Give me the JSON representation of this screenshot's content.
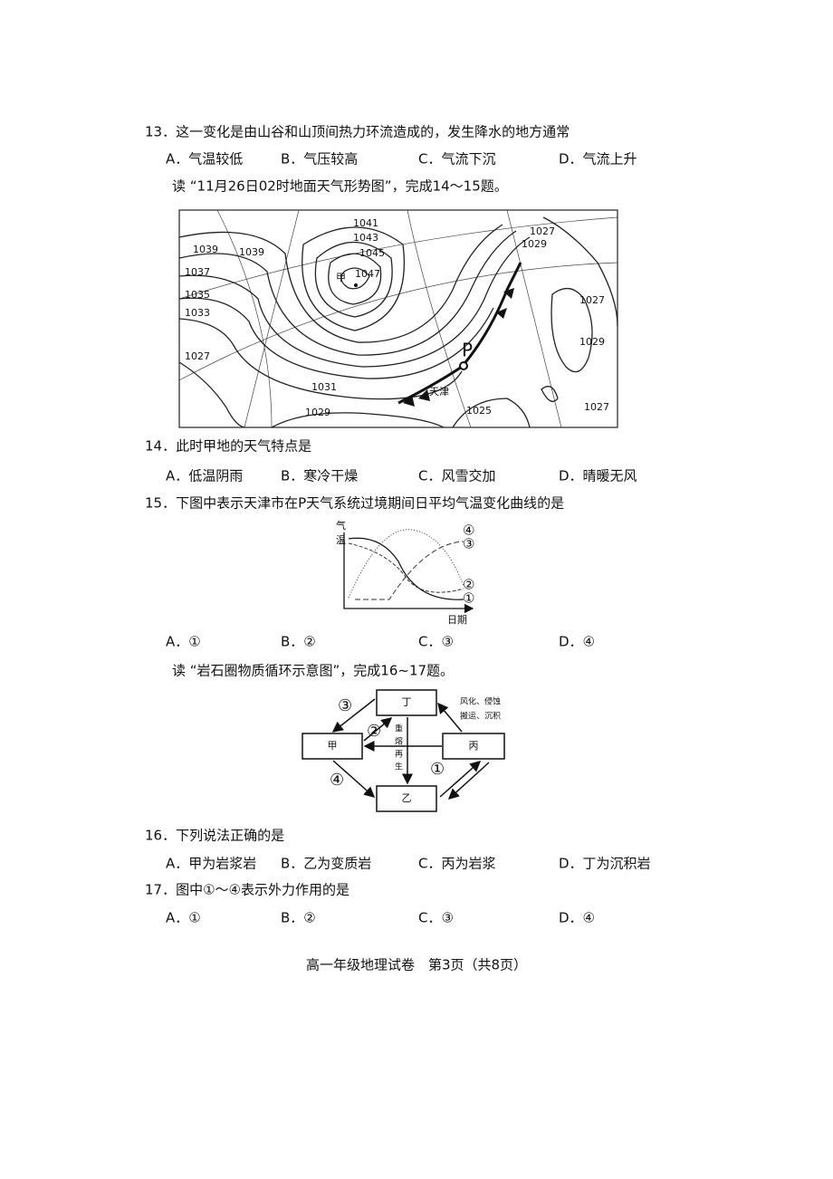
{
  "q13": {
    "stem": "13．这一变化是由山谷和山顶间热力环流造成的，发生降水的地方通常",
    "options": [
      "A．气温较低",
      "B．气压较高",
      "C．气流下沉",
      "D．气流上升"
    ]
  },
  "intro_14_15": "读 “11月26日02时地面天气形势图”，完成14～15题。",
  "map": {
    "isobars": [
      "1041",
      "1043",
      "1045",
      "1047",
      "1039",
      "1039",
      "1037",
      "1035",
      "1033",
      "1027",
      "1031",
      "1029",
      "1025",
      "1027",
      "1029",
      "1027",
      "1027",
      "1029"
    ],
    "high": "甲",
    "system": "P",
    "city": "天津"
  },
  "q14": {
    "stem": "14．此时甲地的天气特点是",
    "options": [
      "A．低温阴雨",
      "B．寒冷干燥",
      "C．风雪交加",
      "D．晴暖无风"
    ]
  },
  "q15": {
    "stem": "15．下图中表示天津市在P天气系统过境期间日平均气温变化曲线的是",
    "options": [
      "A．①",
      "B．②",
      "C．③",
      "D．④"
    ]
  },
  "temp_chart": {
    "y_label": [
      "气",
      "温"
    ],
    "x_label": "日期",
    "curves": [
      "④",
      "③",
      "②",
      "①"
    ]
  },
  "intro_16_17": "读 “岩石圈物质循环示意图”，完成16~17题。",
  "rock_cycle": {
    "boxes": [
      "丁",
      "甲",
      "丙",
      "乙"
    ],
    "arrows": [
      "③",
      "②",
      "④",
      "①"
    ],
    "external": [
      "风化、侵蚀",
      "搬运、沉积"
    ],
    "remelt": [
      "重",
      "熔",
      "再",
      "生"
    ]
  },
  "q16": {
    "stem": "16．下列说法正确的是",
    "options": [
      "A．甲为岩浆岩",
      "B．乙为变质岩",
      "C．丙为岩浆",
      "D．丁为沉积岩"
    ]
  },
  "q17": {
    "stem": "17．图中①～④表示外力作用的是",
    "options": [
      "A．①",
      "B．②",
      "C．③",
      "D．④"
    ]
  },
  "footer": "高一年级地理试卷　第3页（共8页）"
}
